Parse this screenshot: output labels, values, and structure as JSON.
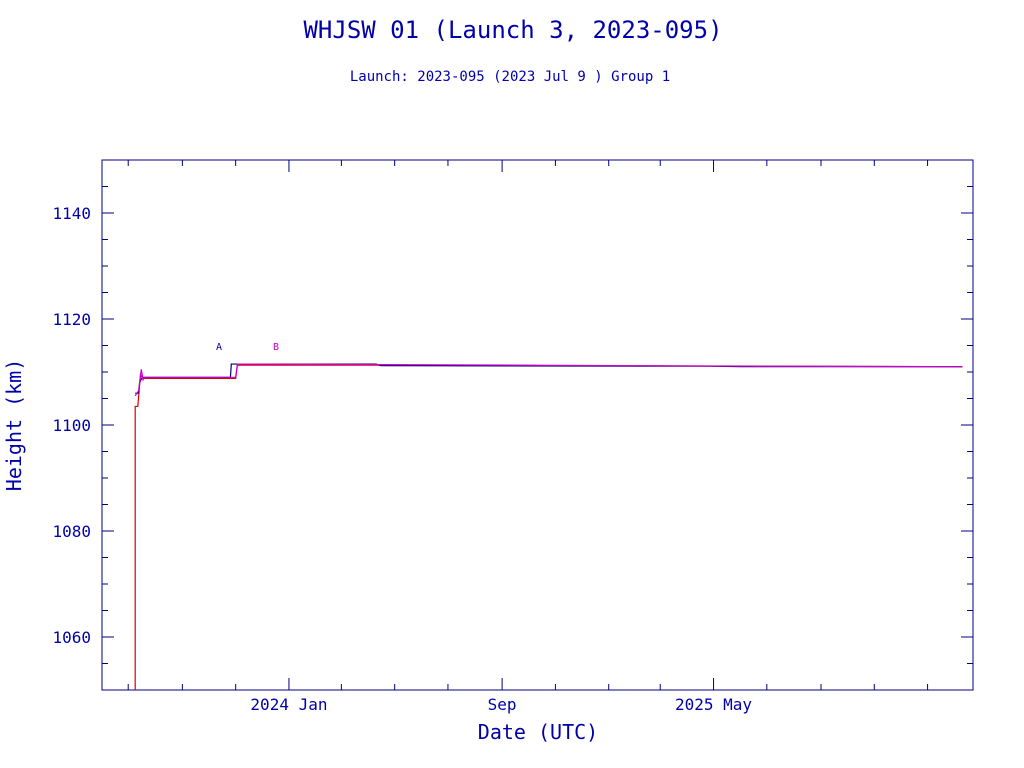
{
  "chart_data": {
    "type": "line",
    "title": "WHJSW 01 (Launch 3, 2023-095)",
    "subtitle": "Launch: 2023-095  (2023 Jul  9 )  Group 1",
    "xlabel": "Date (UTC)",
    "ylabel": "Height (km)",
    "x_tick_labels": [
      "2024 Jan",
      "Sep",
      "2025 May"
    ],
    "y_tick_labels": [
      "1060",
      "1080",
      "1100",
      "1120",
      "1140"
    ],
    "xlim": [
      "2023-06-01",
      "2026-02-22"
    ],
    "ylim": [
      1050,
      1150
    ],
    "legend": [
      {
        "label": "A",
        "color": "#0000b0"
      },
      {
        "label": "B",
        "color": "#cc00cc"
      }
    ],
    "colors": {
      "axis": "#000080",
      "text": "#0000aa",
      "perigee": "#dd0000",
      "object_a": "#000070",
      "object_b": "#cc00cc"
    },
    "series": [
      {
        "name": "A",
        "color": "#000070",
        "points": [
          [
            "2023-07-09",
            1106.0
          ],
          [
            "2023-07-13",
            1106.0
          ],
          [
            "2023-07-14",
            1108.0
          ],
          [
            "2023-07-17",
            1109.0
          ],
          [
            "2023-10-26",
            1109.0
          ],
          [
            "2023-10-27",
            1111.5
          ],
          [
            "2024-04-10",
            1111.5
          ],
          [
            "2024-04-15",
            1111.2
          ],
          [
            "2025-03-20",
            1111.1
          ],
          [
            "2025-04-25",
            1111.1
          ],
          [
            "2025-06-01",
            1111.0
          ],
          [
            "2026-02-10",
            1111.0
          ]
        ]
      },
      {
        "name": "B",
        "color": "#cc00cc",
        "points": [
          [
            "2023-07-09",
            1105.5
          ],
          [
            "2023-07-13",
            1106.5
          ],
          [
            "2023-07-16",
            1110.5
          ],
          [
            "2023-07-18",
            1108.5
          ],
          [
            "2023-07-20",
            1109.0
          ],
          [
            "2023-11-01",
            1109.0
          ],
          [
            "2023-11-03",
            1111.5
          ],
          [
            "2024-04-10",
            1111.4
          ],
          [
            "2025-06-01",
            1111.1
          ],
          [
            "2026-02-10",
            1111.0
          ]
        ]
      },
      {
        "name": "",
        "color": "#dd0000",
        "points": [
          [
            "2023-07-09",
            1050.0
          ],
          [
            "2023-07-09",
            1103.5
          ],
          [
            "2023-07-12",
            1103.5
          ],
          [
            "2023-07-15",
            1109.5
          ],
          [
            "2023-07-18",
            1108.8
          ],
          [
            "2023-11-01",
            1108.8
          ],
          [
            "2023-11-03",
            1111.3
          ],
          [
            "2024-04-10",
            1111.3
          ],
          [
            "2026-02-10",
            1111.0
          ]
        ]
      }
    ]
  }
}
